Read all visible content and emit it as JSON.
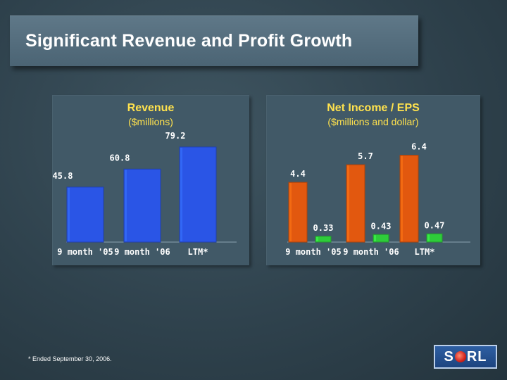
{
  "title": "Significant Revenue and Profit Growth",
  "footnote": "* Ended September 30, 2006.",
  "logo_text_left": "S",
  "logo_text_right": "RL",
  "colors": {
    "revenue_bar": "#2a55e6",
    "net_income_bar": "#e2580f",
    "eps_bar": "#2ecc3a",
    "title_text": "#ffe24d",
    "label_text": "#ffffff"
  },
  "chart_data": [
    {
      "type": "bar",
      "title": "Revenue",
      "subtitle": "($millions)",
      "categories": [
        "9 month '05",
        "9 month '06",
        "LTM*"
      ],
      "series": [
        {
          "values": [
            45.8,
            60.8,
            79.2
          ]
        }
      ],
      "ylim": [
        0,
        85
      ]
    },
    {
      "type": "bar",
      "title": "Net Income / EPS",
      "subtitle": "($millions and dollar)",
      "categories": [
        "9 month '05",
        "9 month '06",
        "LTM*"
      ],
      "series": [
        {
          "values": [
            4.4,
            5.7,
            6.4
          ]
        },
        {
          "values": [
            0.33,
            0.43,
            0.47
          ]
        }
      ],
      "ylim_income": [
        0,
        7
      ],
      "ylim_eps": [
        0,
        1.8
      ]
    }
  ]
}
